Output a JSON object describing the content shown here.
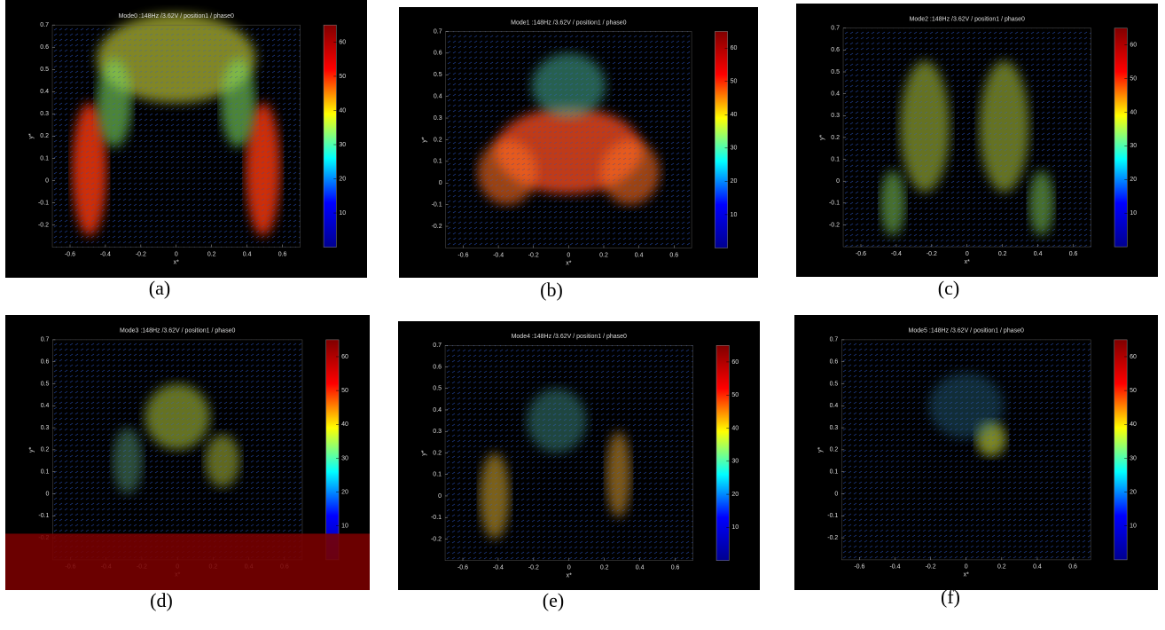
{
  "chart_data": [
    {
      "type": "quiver",
      "title": "Mode0 :148Hz /3.62V / position1 / phase0",
      "xlabel": "x*",
      "ylabel": "y*",
      "xlim": [
        -0.7,
        0.7
      ],
      "ylim": [
        -0.3,
        0.7
      ],
      "xticks": [
        -0.6,
        -0.4,
        -0.2,
        0,
        0.2,
        0.4,
        0.6
      ],
      "yticks": [
        -0.2,
        -0.1,
        0,
        0.1,
        0.2,
        0.3,
        0.4,
        0.5,
        0.6,
        0.7
      ],
      "clim": [
        0,
        65
      ],
      "cticks": [
        10,
        20,
        30,
        40,
        50,
        60
      ],
      "caption": "(a)"
    },
    {
      "type": "quiver",
      "title": "Mode1 :148Hz /3.62V / position1 / phase0",
      "xlabel": "x*",
      "ylabel": "y*",
      "xlim": [
        -0.7,
        0.7
      ],
      "ylim": [
        -0.3,
        0.7
      ],
      "xticks": [
        -0.6,
        -0.4,
        -0.2,
        0,
        0.2,
        0.4,
        0.6
      ],
      "yticks": [
        -0.2,
        -0.1,
        0,
        0.1,
        0.2,
        0.3,
        0.4,
        0.5,
        0.6,
        0.7
      ],
      "clim": [
        0,
        65
      ],
      "cticks": [
        10,
        20,
        30,
        40,
        50,
        60
      ],
      "caption": "(b)"
    },
    {
      "type": "quiver",
      "title": "Mode2 :148Hz /3.62V / position1 / phase0",
      "xlabel": "x*",
      "ylabel": "y*",
      "xlim": [
        -0.7,
        0.7
      ],
      "ylim": [
        -0.3,
        0.7
      ],
      "xticks": [
        -0.6,
        -0.4,
        -0.2,
        0,
        0.2,
        0.4,
        0.6
      ],
      "yticks": [
        -0.2,
        -0.1,
        0,
        0.1,
        0.2,
        0.3,
        0.4,
        0.5,
        0.6,
        0.7
      ],
      "clim": [
        0,
        65
      ],
      "cticks": [
        10,
        20,
        30,
        40,
        50,
        60
      ],
      "caption": "(c)"
    },
    {
      "type": "quiver",
      "title": "Mode3 :148Hz /3.62V / position1 / phase0",
      "xlabel": "x*",
      "ylabel": "y*",
      "xlim": [
        -0.7,
        0.7
      ],
      "ylim": [
        -0.3,
        0.7
      ],
      "xticks": [
        -0.6,
        -0.4,
        -0.2,
        0,
        0.2,
        0.4,
        0.6
      ],
      "yticks": [
        -0.2,
        -0.1,
        0,
        0.1,
        0.2,
        0.3,
        0.4,
        0.5,
        0.6,
        0.7
      ],
      "clim": [
        0,
        65
      ],
      "cticks": [
        10,
        20,
        30,
        40,
        50,
        60
      ],
      "caption": "(d)"
    },
    {
      "type": "quiver",
      "title": "Mode4 :148Hz /3.62V / position1 / phase0",
      "xlabel": "x*",
      "ylabel": "y*",
      "xlim": [
        -0.7,
        0.7
      ],
      "ylim": [
        -0.3,
        0.7
      ],
      "xticks": [
        -0.6,
        -0.4,
        -0.2,
        0,
        0.2,
        0.4,
        0.6
      ],
      "yticks": [
        -0.2,
        -0.1,
        0,
        0.1,
        0.2,
        0.3,
        0.4,
        0.5,
        0.6,
        0.7
      ],
      "clim": [
        0,
        65
      ],
      "cticks": [
        10,
        20,
        30,
        40,
        50,
        60
      ],
      "caption": "(e)"
    },
    {
      "type": "quiver",
      "title": "Mode5 :148Hz /3.62V / position1 / phase0",
      "xlabel": "x*",
      "ylabel": "y*",
      "xlim": [
        -0.7,
        0.7
      ],
      "ylim": [
        -0.3,
        0.7
      ],
      "xticks": [
        -0.6,
        -0.4,
        -0.2,
        0,
        0.2,
        0.4,
        0.6
      ],
      "yticks": [
        -0.2,
        -0.1,
        0,
        0.1,
        0.2,
        0.3,
        0.4,
        0.5,
        0.6,
        0.7
      ],
      "clim": [
        0,
        65
      ],
      "cticks": [
        10,
        20,
        30,
        40,
        50,
        60
      ],
      "caption": "(f)"
    }
  ]
}
